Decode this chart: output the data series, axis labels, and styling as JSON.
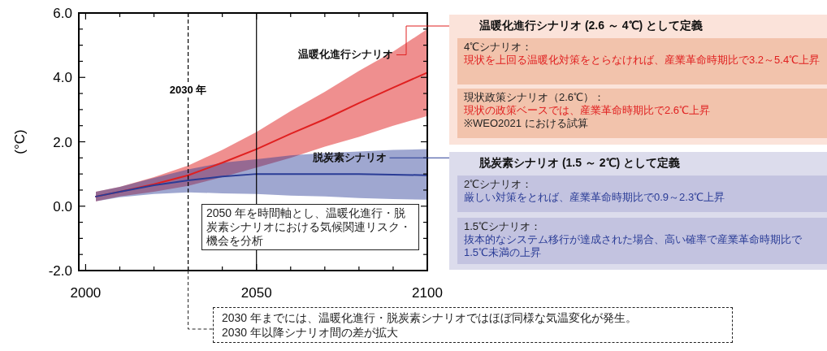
{
  "chart_data": {
    "type": "line",
    "ylabel": "(°C)",
    "x": [
      2003,
      2010,
      2020,
      2030,
      2040,
      2050,
      2060,
      2070,
      2080,
      2090,
      2100
    ],
    "series": [
      {
        "name": "温暖化進行シナリオ",
        "color": "#e02020",
        "values": [
          0.3,
          0.45,
          0.68,
          0.96,
          1.35,
          1.77,
          2.25,
          2.7,
          3.2,
          3.68,
          4.15
        ],
        "lower": [
          0.15,
          0.3,
          0.45,
          0.63,
          0.9,
          1.2,
          1.5,
          1.85,
          2.15,
          2.5,
          2.8
        ],
        "upper": [
          0.45,
          0.6,
          0.9,
          1.26,
          1.75,
          2.3,
          2.95,
          3.55,
          4.2,
          4.8,
          5.5
        ]
      },
      {
        "name": "脱炭素シナリオ",
        "color": "#2a3c96",
        "values": [
          0.3,
          0.45,
          0.65,
          0.8,
          0.92,
          1.0,
          1.0,
          1.0,
          1.0,
          0.98,
          0.96
        ],
        "lower": [
          0.15,
          0.28,
          0.38,
          0.43,
          0.4,
          0.38,
          0.33,
          0.3,
          0.25,
          0.22,
          0.2
        ],
        "upper": [
          0.45,
          0.6,
          0.88,
          1.14,
          1.35,
          1.46,
          1.58,
          1.65,
          1.7,
          1.75,
          1.77
        ]
      }
    ],
    "xlim": [
      1998,
      2100
    ],
    "xticks": [
      2000,
      {
        "value": 2010,
        "label": null
      },
      {
        "value": 2020,
        "label": null
      },
      {
        "value": 2030,
        "label": null
      },
      {
        "value": 2040,
        "label": null
      },
      2050,
      {
        "value": 2060,
        "label": null
      },
      {
        "value": 2070,
        "label": null
      },
      {
        "value": 2080,
        "label": null
      },
      {
        "value": 2090,
        "label": null
      },
      2100
    ],
    "ylim": [
      -2,
      6
    ],
    "yticks": [
      {
        "value": -2,
        "label": "-2.0"
      },
      {
        "value": -1.5,
        "label": null
      },
      {
        "value": -1,
        "label": null
      },
      {
        "value": -0.5,
        "label": null
      },
      {
        "value": 0,
        "label": "0.0"
      },
      {
        "value": 0.5,
        "label": null
      },
      {
        "value": 1,
        "label": null
      },
      {
        "value": 1.5,
        "label": null
      },
      {
        "value": 2,
        "label": "2.0"
      },
      {
        "value": 2.5,
        "label": null
      },
      {
        "value": 3,
        "label": null
      },
      {
        "value": 3.5,
        "label": null
      },
      {
        "value": 4,
        "label": "4.0"
      },
      {
        "value": 4.5,
        "label": null
      },
      {
        "value": 5,
        "label": null
      },
      {
        "value": 5.5,
        "label": null
      },
      {
        "value": 6,
        "label": "6.0"
      }
    ],
    "ref_lines": [
      {
        "axis": "x",
        "value": 2030,
        "label": "2030 年",
        "line_style": "dashed"
      },
      {
        "axis": "x",
        "value": 2050,
        "line_style": "solid"
      }
    ],
    "legend": false,
    "annotations": [
      "温暖化進行シナリオ (2.6 ～ 4℃) として定義",
      "4℃シナリオ：",
      "現状を上回る温暖化対策をとらなければ、産業革命時期比で3.2～5.4℃上昇",
      "現状政策シナリオ（2.6℃）：",
      "現状の政策ベースでは、産業革命時期比で2.6℃上昇",
      "※WEO2021 における試算",
      "脱炭素シナリオ (1.5 ～ 2℃) として定義",
      "2℃シナリオ：",
      "厳しい対策をとれば、産業革命時期比で0.9～2.3℃上昇",
      "1.5℃シナリオ：",
      "抜本的なシステム移行が達成された場合、高い確率で産業革命時期比で1.5℃未満の上昇",
      "2050 年を時間軸とし、温暖化進行・脱炭素シナリオにおける気候関連リスク・機会を分析",
      {
        "text": "2030 年までには、温暖化進行・脱炭素シナリオではほぼ同様な気温変化が発生。",
        "x": 2030,
        "y": -2
      },
      "2030 年以降シナリオ間の差が拡大"
    ]
  }
}
